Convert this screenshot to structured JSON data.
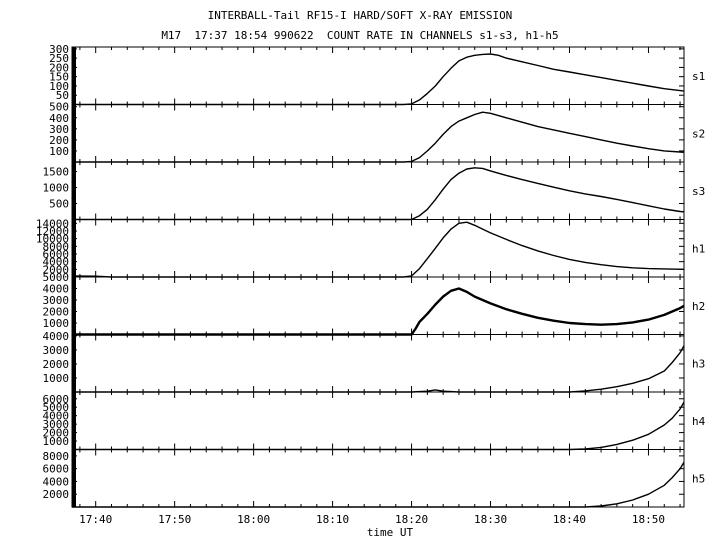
{
  "header": {
    "title": "INTERBALL-Tail RF15-I HARD/SOFT X-RAY EMISSION",
    "subtitle": "M17  17:37 18:54 990622  COUNT RATE IN CHANNELS s1-s3, h1-h5"
  },
  "chart_data": {
    "type": "line",
    "xlabel": "time UT",
    "x_ticks": [
      "17:40",
      "17:50",
      "18:00",
      "18:10",
      "18:20",
      "18:30",
      "18:40",
      "18:50"
    ],
    "x_tick_minutes": [
      40,
      50,
      60,
      70,
      80,
      90,
      100,
      110
    ],
    "xlim_minutes": [
      37,
      114.5
    ],
    "panels": [
      {
        "name": "s1",
        "ylim": [
          0,
          310
        ],
        "yticks": [
          300,
          250,
          200,
          150,
          100,
          50
        ],
        "series": [
          [
            37,
            0
          ],
          [
            79,
            0
          ],
          [
            80,
            3
          ],
          [
            81,
            25
          ],
          [
            82,
            60
          ],
          [
            83,
            100
          ],
          [
            84,
            150
          ],
          [
            85,
            195
          ],
          [
            86,
            235
          ],
          [
            87,
            255
          ],
          [
            88,
            265
          ],
          [
            89,
            270
          ],
          [
            90,
            272
          ],
          [
            91,
            265
          ],
          [
            92,
            250
          ],
          [
            94,
            230
          ],
          [
            96,
            210
          ],
          [
            98,
            190
          ],
          [
            100,
            175
          ],
          [
            102,
            160
          ],
          [
            104,
            145
          ],
          [
            106,
            130
          ],
          [
            108,
            115
          ],
          [
            110,
            100
          ],
          [
            112,
            85
          ],
          [
            114,
            75
          ],
          [
            114.5,
            72
          ]
        ]
      },
      {
        "name": "s2",
        "ylim": [
          0,
          520
        ],
        "yticks": [
          500,
          400,
          300,
          200,
          100
        ],
        "series": [
          [
            37,
            0
          ],
          [
            79,
            0
          ],
          [
            80,
            5
          ],
          [
            81,
            40
          ],
          [
            82,
            100
          ],
          [
            83,
            170
          ],
          [
            84,
            250
          ],
          [
            85,
            320
          ],
          [
            86,
            370
          ],
          [
            87,
            400
          ],
          [
            88,
            430
          ],
          [
            89,
            450
          ],
          [
            90,
            440
          ],
          [
            91,
            420
          ],
          [
            92,
            400
          ],
          [
            94,
            360
          ],
          [
            96,
            320
          ],
          [
            98,
            290
          ],
          [
            100,
            260
          ],
          [
            102,
            230
          ],
          [
            104,
            200
          ],
          [
            106,
            170
          ],
          [
            108,
            145
          ],
          [
            110,
            120
          ],
          [
            112,
            100
          ],
          [
            114,
            90
          ],
          [
            114.5,
            88
          ]
        ]
      },
      {
        "name": "s3",
        "ylim": [
          0,
          1800
        ],
        "yticks": [
          1500,
          1000,
          500
        ],
        "series": [
          [
            37,
            0
          ],
          [
            80,
            0
          ],
          [
            81,
            120
          ],
          [
            82,
            320
          ],
          [
            83,
            620
          ],
          [
            84,
            950
          ],
          [
            85,
            1250
          ],
          [
            86,
            1450
          ],
          [
            87,
            1580
          ],
          [
            88,
            1620
          ],
          [
            89,
            1600
          ],
          [
            90,
            1520
          ],
          [
            91,
            1450
          ],
          [
            92,
            1380
          ],
          [
            94,
            1250
          ],
          [
            96,
            1130
          ],
          [
            98,
            1010
          ],
          [
            100,
            900
          ],
          [
            102,
            800
          ],
          [
            104,
            720
          ],
          [
            106,
            630
          ],
          [
            108,
            530
          ],
          [
            110,
            430
          ],
          [
            112,
            330
          ],
          [
            114,
            250
          ],
          [
            114.5,
            240
          ]
        ]
      },
      {
        "name": "h1",
        "ylim": [
          0,
          15000
        ],
        "yticks": [
          14000,
          12000,
          10000,
          8000,
          6000,
          4000,
          2000
        ],
        "series": [
          [
            37,
            300
          ],
          [
            40,
            200
          ],
          [
            42,
            0
          ],
          [
            79,
            0
          ],
          [
            80,
            300
          ],
          [
            81,
            2200
          ],
          [
            82,
            4800
          ],
          [
            83,
            7500
          ],
          [
            84,
            10200
          ],
          [
            85,
            12500
          ],
          [
            86,
            14000
          ],
          [
            87,
            14300
          ],
          [
            88,
            13500
          ],
          [
            89,
            12500
          ],
          [
            90,
            11500
          ],
          [
            92,
            9800
          ],
          [
            94,
            8200
          ],
          [
            96,
            6800
          ],
          [
            98,
            5600
          ],
          [
            100,
            4600
          ],
          [
            102,
            3800
          ],
          [
            104,
            3200
          ],
          [
            106,
            2700
          ],
          [
            108,
            2400
          ],
          [
            110,
            2200
          ],
          [
            112,
            2100
          ],
          [
            114.5,
            2000
          ]
        ]
      },
      {
        "name": "h2",
        "ylim": [
          0,
          5000
        ],
        "yticks": [
          5000,
          4000,
          3000,
          2000,
          1000
        ],
        "series": [
          [
            37,
            0
          ],
          [
            80,
            0
          ],
          [
            80.5,
            500
          ],
          [
            81,
            1100
          ],
          [
            82,
            1800
          ],
          [
            83,
            2600
          ],
          [
            84,
            3300
          ],
          [
            85,
            3800
          ],
          [
            86,
            4000
          ],
          [
            87,
            3700
          ],
          [
            88,
            3300
          ],
          [
            90,
            2700
          ],
          [
            92,
            2200
          ],
          [
            94,
            1800
          ],
          [
            96,
            1450
          ],
          [
            98,
            1200
          ],
          [
            100,
            1000
          ],
          [
            102,
            900
          ],
          [
            104,
            850
          ],
          [
            106,
            900
          ],
          [
            108,
            1050
          ],
          [
            110,
            1300
          ],
          [
            112,
            1700
          ],
          [
            114,
            2300
          ],
          [
            114.5,
            2500
          ]
        ]
      },
      {
        "name": "h3",
        "ylim": [
          0,
          4100
        ],
        "yticks": [
          4000,
          3000,
          2000,
          1000
        ],
        "series": [
          [
            37,
            0
          ],
          [
            80,
            0
          ],
          [
            82,
            60
          ],
          [
            83,
            150
          ],
          [
            84,
            60
          ],
          [
            86,
            0
          ],
          [
            100,
            0
          ],
          [
            102,
            80
          ],
          [
            104,
            200
          ],
          [
            106,
            380
          ],
          [
            108,
            620
          ],
          [
            110,
            950
          ],
          [
            112,
            1500
          ],
          [
            113,
            2100
          ],
          [
            114,
            2800
          ],
          [
            114.5,
            3300
          ]
        ]
      },
      {
        "name": "h4",
        "ylim": [
          0,
          6800
        ],
        "yticks": [
          6000,
          5000,
          4000,
          3000,
          2000,
          1000
        ],
        "series": [
          [
            37,
            0
          ],
          [
            100,
            0
          ],
          [
            102,
            60
          ],
          [
            104,
            250
          ],
          [
            106,
            600
          ],
          [
            108,
            1100
          ],
          [
            110,
            1800
          ],
          [
            112,
            2900
          ],
          [
            113,
            3700
          ],
          [
            114,
            4800
          ],
          [
            114.5,
            5600
          ]
        ]
      },
      {
        "name": "h5",
        "ylim": [
          0,
          9000
        ],
        "yticks": [
          8000,
          6000,
          4000,
          2000
        ],
        "series": [
          [
            37,
            0
          ],
          [
            102,
            0
          ],
          [
            104,
            150
          ],
          [
            106,
            500
          ],
          [
            108,
            1100
          ],
          [
            110,
            2000
          ],
          [
            112,
            3400
          ],
          [
            113,
            4600
          ],
          [
            114,
            6000
          ],
          [
            114.5,
            7000
          ]
        ]
      }
    ]
  }
}
